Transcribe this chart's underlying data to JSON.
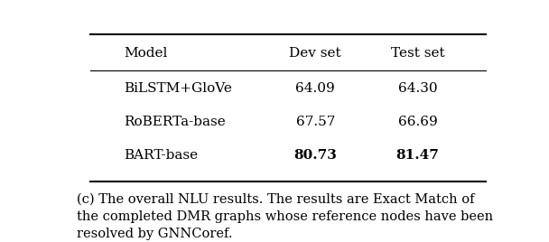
{
  "columns": [
    "Model",
    "Dev set",
    "Test set"
  ],
  "rows": [
    [
      "BiLSTM+GloVe",
      "64.09",
      "64.30"
    ],
    [
      "RoBERTa-base",
      "67.57",
      "66.69"
    ],
    [
      "BART-base",
      "80.73",
      "81.47"
    ]
  ],
  "bold_rows": [
    2
  ],
  "bold_cols": [
    1,
    2
  ],
  "caption": "(c) The overall NLU results. The results are Exact Match of\nthe completed DMR graphs whose reference nodes have been\nresolved by GNNCoref.",
  "background_color": "#ffffff",
  "text_color": "#000000",
  "font_size": 11,
  "caption_font_size": 10.5
}
